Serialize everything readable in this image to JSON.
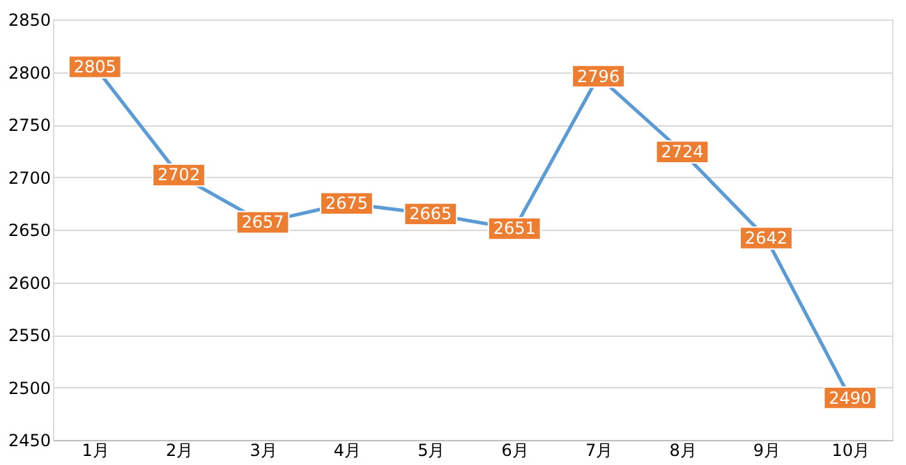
{
  "chart_data": {
    "type": "line",
    "categories": [
      "1月",
      "2月",
      "3月",
      "4月",
      "5月",
      "6月",
      "7月",
      "8月",
      "9月",
      "10月"
    ],
    "series": [
      {
        "color": "#5b9bd5",
        "values": [
          2805,
          2702,
          2657,
          2675,
          2665,
          2651,
          2796,
          2724,
          2642,
          2490
        ]
      }
    ],
    "ylim": [
      2450,
      2850
    ],
    "yticks": [
      2450,
      2500,
      2550,
      2600,
      2650,
      2700,
      2750,
      2800,
      2850
    ],
    "grid": "y",
    "data_labels": true,
    "marker": "square",
    "line_style": "solid"
  }
}
